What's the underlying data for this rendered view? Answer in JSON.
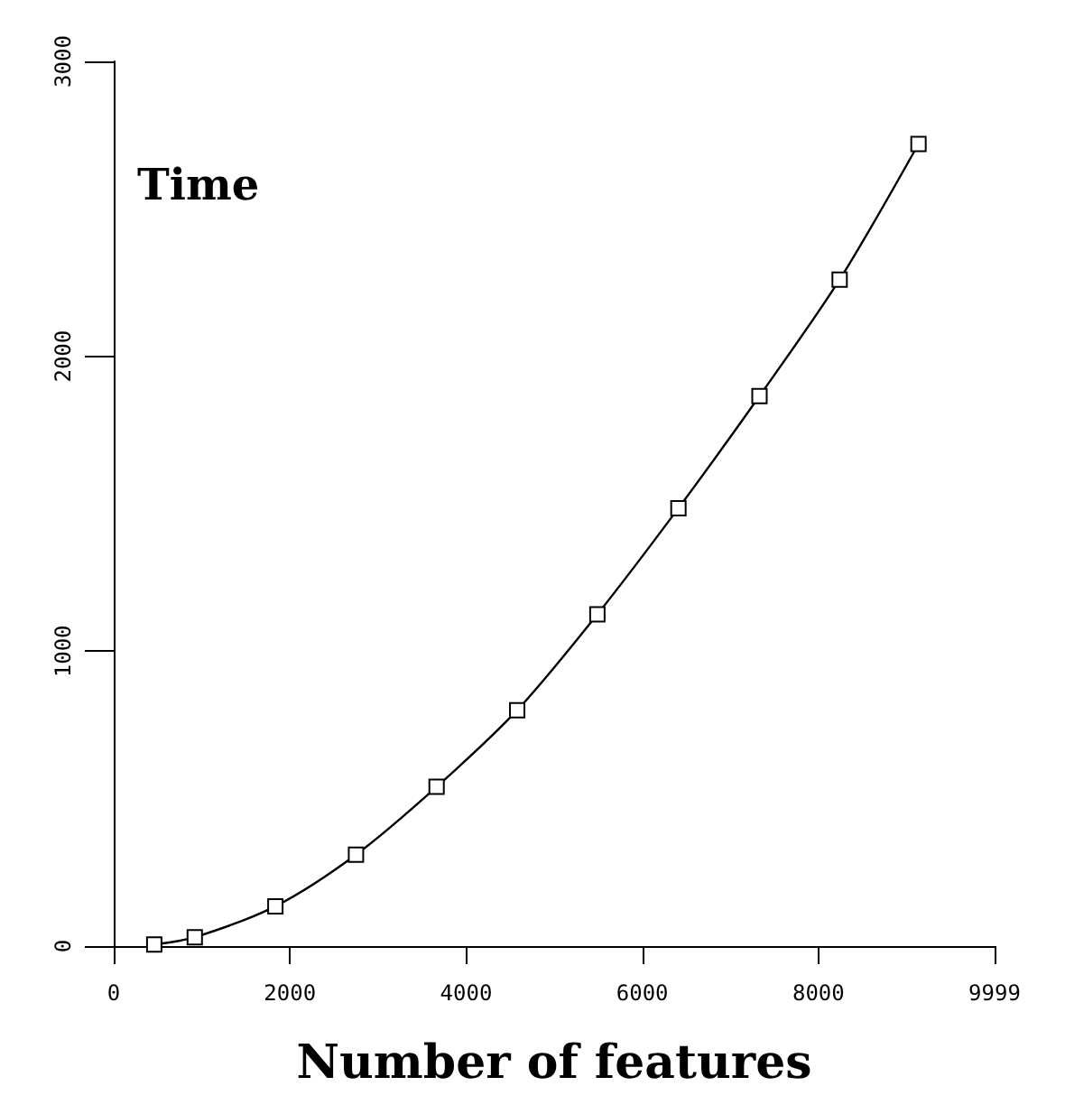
{
  "chart_data": {
    "type": "line",
    "xlabel": "Number of features",
    "ylabel": "Time",
    "x": [
      460,
      920,
      1835,
      2750,
      3665,
      4580,
      5490,
      6410,
      7330,
      8240,
      9135
    ],
    "values": [
      5,
      30,
      135,
      310,
      540,
      800,
      1125,
      1485,
      1865,
      2260,
      2720
    ],
    "color": "#000000",
    "marker": "square",
    "line_style": "solid",
    "grid": false,
    "xlim": [
      0,
      9999
    ],
    "xticks": [
      0,
      2000,
      4000,
      6000,
      8000,
      9999
    ],
    "ylim": [
      0,
      3000
    ],
    "yticks": [
      0,
      1000,
      2000,
      3000
    ]
  }
}
